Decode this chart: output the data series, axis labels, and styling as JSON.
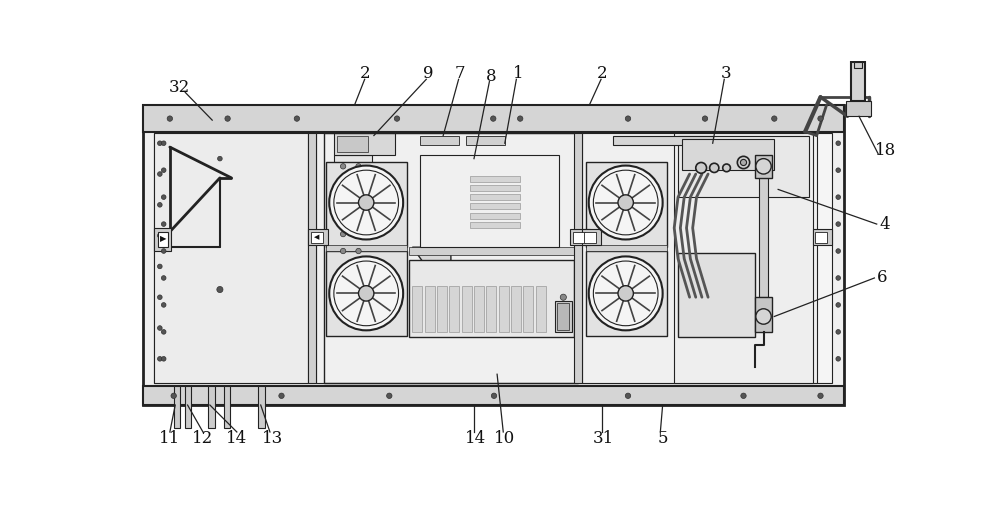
{
  "bg_color": "#ffffff",
  "lc": "#222222",
  "gray1": "#bbbbbb",
  "gray2": "#cccccc",
  "gray3": "#dddddd",
  "gray4": "#e8e8e8",
  "gray5": "#f0f0f0",
  "gray6": "#aaaaaa",
  "figsize": [
    10.0,
    5.07
  ],
  "dpi": 100
}
